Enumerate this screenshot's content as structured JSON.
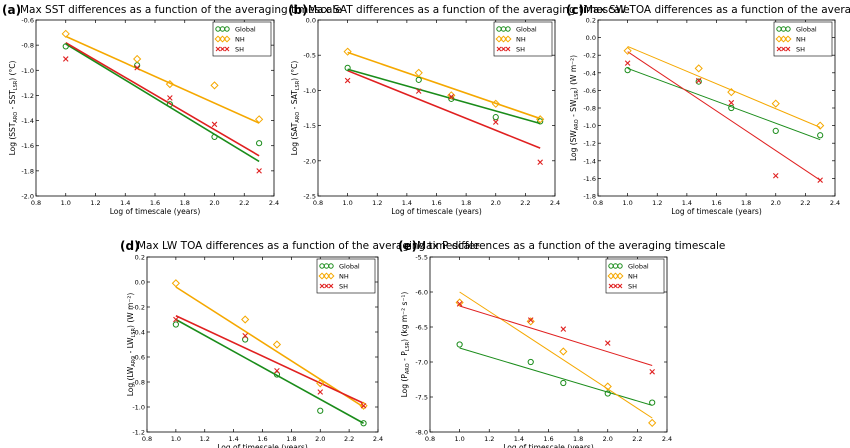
{
  "figure": {
    "colors": {
      "Global": "#1a8c1a",
      "NH": "#f5a800",
      "SH": "#e02020"
    },
    "legend_labels": [
      "Global",
      "NH",
      "SH"
    ]
  },
  "chart_data": [
    {
      "type": "scatter",
      "panel_label": "(a)",
      "title": "Max SST differences as a function of the averaging timescale",
      "xlabel": "Log of timescale (years)",
      "ylabel": "Log (SST",
      "ylabel_sub1": "ARO",
      "ylabel_mid": " - SST",
      "ylabel_sub2": "LSR",
      "ylabel_end": ") (°C)",
      "xlim": [
        0.8,
        2.4
      ],
      "ylim": [
        -2.0,
        -0.6
      ],
      "xticks": [
        "0.8",
        "1.0",
        "1.2",
        "1.4",
        "1.6",
        "1.8",
        "2.0",
        "2.2",
        "2.4"
      ],
      "yticks": [
        "-2.0",
        "-1.8",
        "-1.6",
        "-1.4",
        "-1.2",
        "-1.0",
        "-0.8",
        "-0.6"
      ],
      "legend_position": "top-right",
      "x": [
        1.0,
        1.48,
        1.7,
        2.0,
        2.3
      ],
      "series": [
        {
          "name": "Global",
          "values": [
            -0.81,
            -0.96,
            -1.27,
            -1.53,
            -1.58
          ],
          "fit": [
            -0.79,
            -1.725
          ]
        },
        {
          "name": "NH",
          "values": [
            -0.71,
            -0.91,
            -1.11,
            -1.12,
            -1.39
          ],
          "fit": [
            -0.73,
            -1.42
          ]
        },
        {
          "name": "SH",
          "values": [
            -0.91,
            -0.98,
            -1.22,
            -1.43,
            -1.8
          ],
          "fit": [
            -0.78,
            -1.68
          ]
        }
      ]
    },
    {
      "type": "scatter",
      "panel_label": "(b)",
      "title": "Max SAT differences as a function of the averaging timescale",
      "xlabel": "Log of timescale (years)",
      "ylabel": "Log (SAT",
      "ylabel_sub1": "ARO",
      "ylabel_mid": " - SAT",
      "ylabel_sub2": "LSR",
      "ylabel_end": ") (°C)",
      "xlim": [
        0.8,
        2.4
      ],
      "ylim": [
        -2.5,
        -0.0
      ],
      "xticks": [
        "0.8",
        "1.0",
        "1.2",
        "1.4",
        "1.6",
        "1.8",
        "2.0",
        "2.2",
        "2.4"
      ],
      "yticks": [
        "-2.5",
        "-2.0",
        "-1.5",
        "-1.0",
        "-0.5",
        "0.0"
      ],
      "legend_position": "top-right",
      "x": [
        1.0,
        1.48,
        1.7,
        2.0,
        2.3
      ],
      "series": [
        {
          "name": "Global",
          "values": [
            -0.68,
            -0.85,
            -1.12,
            -1.38,
            -1.44
          ],
          "fit": [
            -0.7,
            -1.47
          ]
        },
        {
          "name": "NH",
          "values": [
            -0.45,
            -0.75,
            -1.07,
            -1.19,
            -1.41
          ],
          "fit": [
            -0.46,
            -1.4
          ]
        },
        {
          "name": "SH",
          "values": [
            -0.86,
            -1.01,
            -1.09,
            -1.45,
            -2.02
          ],
          "fit": [
            -0.72,
            -1.82
          ]
        }
      ]
    },
    {
      "type": "scatter",
      "panel_label": "(c)",
      "title": "Max SW TOA differences as a function of the averaging timescale",
      "xlabel": "Log of timescale (years)",
      "ylabel": "Log (SW",
      "ylabel_sub1": "ARO",
      "ylabel_mid": " - SW",
      "ylabel_sub2": "LSR",
      "ylabel_end": ") (W m⁻²)",
      "xlim": [
        0.8,
        2.4
      ],
      "ylim": [
        -1.8,
        0.2
      ],
      "xticks": [
        "0.8",
        "1.0",
        "1.2",
        "1.4",
        "1.6",
        "1.8",
        "2.0",
        "2.2",
        "2.4"
      ],
      "yticks": [
        "-1.8",
        "-1.6",
        "-1.4",
        "-1.2",
        "-1.0",
        "-0.8",
        "-0.6",
        "-0.4",
        "-0.2",
        "0.0",
        "0.2"
      ],
      "legend_position": "top-right",
      "x": [
        1.0,
        1.48,
        1.7,
        2.0,
        2.3
      ],
      "series": [
        {
          "name": "Global",
          "values": [
            -0.37,
            -0.5,
            -0.8,
            -1.06,
            -1.11
          ],
          "fit": [
            -0.35,
            -1.16
          ]
        },
        {
          "name": "NH",
          "values": [
            -0.15,
            -0.35,
            -0.62,
            -0.75,
            -1.0
          ],
          "fit": [
            -0.1,
            -1.02
          ]
        },
        {
          "name": "SH",
          "values": [
            -0.29,
            -0.49,
            -0.74,
            -1.57,
            -1.62
          ],
          "fit": [
            -0.16,
            -1.62
          ]
        }
      ]
    },
    {
      "type": "scatter",
      "panel_label": "(d)",
      "title": "Max LW TOA differences as a function of the averaging timescale",
      "xlabel": "Log of timescale (years)",
      "ylabel": "Log (LW",
      "ylabel_sub1": "ARO",
      "ylabel_mid": " - LW",
      "ylabel_sub2": "LSR",
      "ylabel_end": ") (W m⁻²)",
      "xlim": [
        0.8,
        2.4
      ],
      "ylim": [
        -1.2,
        0.2
      ],
      "xticks": [
        "0.8",
        "1.0",
        "1.2",
        "1.4",
        "1.6",
        "1.8",
        "2.0",
        "2.2",
        "2.4"
      ],
      "yticks": [
        "-1.2",
        "-1.0",
        "-0.8",
        "-0.6",
        "-0.4",
        "-0.2",
        "0.0",
        "0.2"
      ],
      "legend_position": "top-right",
      "x": [
        1.0,
        1.48,
        1.7,
        2.0,
        2.3
      ],
      "series": [
        {
          "name": "Global",
          "values": [
            -0.34,
            -0.46,
            -0.74,
            -1.03,
            -1.13
          ],
          "fit": [
            -0.3,
            -1.13
          ]
        },
        {
          "name": "NH",
          "values": [
            -0.01,
            -0.3,
            -0.5,
            -0.81,
            -0.99
          ],
          "fit": [
            -0.04,
            -1.0
          ]
        },
        {
          "name": "SH",
          "values": [
            -0.3,
            -0.43,
            -0.71,
            -0.88,
            -0.99
          ],
          "fit": [
            -0.27,
            -0.97
          ]
        }
      ]
    },
    {
      "type": "scatter",
      "panel_label": "(e)",
      "title": "Max P differences as a function of the averaging timescale",
      "xlabel": "Log of timescale (years)",
      "ylabel": "Log (P",
      "ylabel_sub1": "ARO",
      "ylabel_mid": " - P",
      "ylabel_sub2": "LSR",
      "ylabel_end": ") (kg m⁻² s⁻¹)",
      "xlim": [
        0.8,
        2.4
      ],
      "ylim": [
        -8.0,
        -5.5
      ],
      "xticks": [
        "0.8",
        "1.0",
        "1.2",
        "1.4",
        "1.6",
        "1.8",
        "2.0",
        "2.2",
        "2.4"
      ],
      "yticks": [
        "-8.0",
        "-7.5",
        "-7.0",
        "-6.5",
        "-6.0",
        "-5.5"
      ],
      "legend_position": "top-right",
      "x": [
        1.0,
        1.48,
        1.7,
        2.0,
        2.3
      ],
      "series": [
        {
          "name": "Global",
          "values": [
            -6.75,
            -7.0,
            -7.3,
            -7.45,
            -7.58
          ],
          "fit": [
            -6.8,
            -7.62
          ]
        },
        {
          "name": "NH",
          "values": [
            -6.15,
            -6.42,
            -6.85,
            -7.35,
            -7.87
          ],
          "fit": [
            -6.0,
            -7.8
          ]
        },
        {
          "name": "SH",
          "values": [
            -6.17,
            -6.4,
            -6.53,
            -6.73,
            -7.14
          ],
          "fit": [
            -6.2,
            -7.05
          ]
        }
      ]
    }
  ]
}
